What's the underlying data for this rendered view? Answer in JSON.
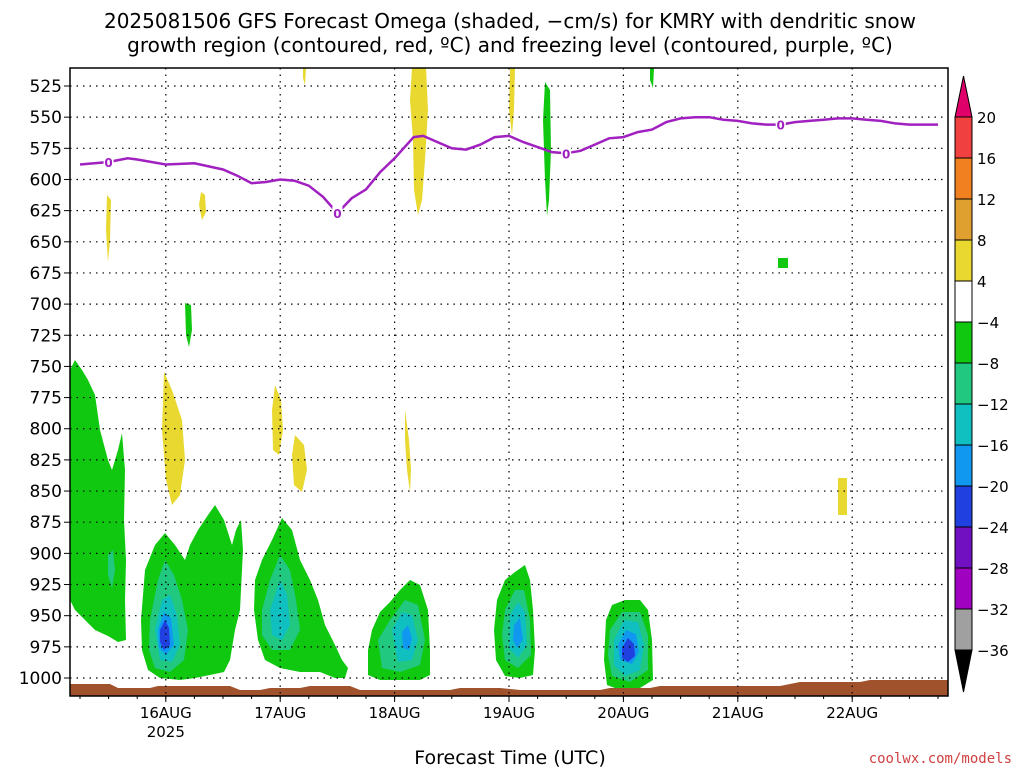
{
  "title": {
    "line1": "2025081506 GFS Forecast Omega (shaded, −cm/s) for KMRY with dendritic snow",
    "line2": "growth region (contoured, red, ºC) and freezing level (contoured, purple, ºC)"
  },
  "footer": {
    "xlabel": "Forecast Time (UTC)",
    "credit": "coolwx.com/models"
  },
  "colors": {
    "freezing_level": "#a020c0",
    "terrain": "#a0522d",
    "grid": "#000000"
  },
  "chart_data": {
    "type": "heatmap",
    "title": "2025081506 GFS Forecast Omega (shaded, −cm/s) for KMRY with dendritic snow growth region (contoured, red, ºC) and freezing level (contoured, purple, ºC)",
    "xlabel": "Forecast Time (UTC)",
    "ylabel": "",
    "y_axis": "pressure (hPa), inverted",
    "y_ticks": [
      525,
      550,
      575,
      600,
      625,
      650,
      675,
      700,
      725,
      750,
      775,
      800,
      825,
      850,
      875,
      900,
      925,
      950,
      975,
      1000
    ],
    "x_ticks": [
      {
        "label": "16AUG",
        "sublabel": "2025",
        "hours": 18
      },
      {
        "label": "17AUG",
        "sublabel": "",
        "hours": 42
      },
      {
        "label": "18AUG",
        "sublabel": "",
        "hours": 66
      },
      {
        "label": "19AUG",
        "sublabel": "",
        "hours": 90
      },
      {
        "label": "20AUG",
        "sublabel": "",
        "hours": 114
      },
      {
        "label": "21AUG",
        "sublabel": "",
        "hours": 138
      },
      {
        "label": "22AUG",
        "sublabel": "",
        "hours": 162
      }
    ],
    "x_range_hours": [
      0,
      180
    ],
    "grid": true,
    "colorbar": {
      "levels": [
        20,
        16,
        12,
        8,
        4,
        -4,
        -8,
        -12,
        -16,
        -20,
        -24,
        -28,
        -32,
        -36
      ],
      "colors": [
        "#e0006a",
        "#f04040",
        "#f08020",
        "#e0a030",
        "#e8d830",
        "#ffffff",
        "#10c810",
        "#20c880",
        "#10c0c0",
        "#1098f0",
        "#2040e0",
        "#7010c0",
        "#a000c0",
        "#a0a0a0",
        "#000000"
      ]
    },
    "freezing_level_series": {
      "name": "0",
      "hours": [
        0,
        6,
        10,
        12,
        18,
        24,
        30,
        33,
        36,
        39,
        42,
        45,
        48,
        51,
        54,
        57,
        60,
        63,
        66,
        70,
        72,
        75,
        78,
        81,
        84,
        87,
        90,
        93,
        96,
        99,
        102,
        105,
        108,
        111,
        114,
        117,
        120,
        123,
        126,
        129,
        132,
        135,
        138,
        141,
        144,
        147,
        150,
        153,
        156,
        159,
        162,
        165,
        168,
        171,
        174,
        177,
        180
      ],
      "pressure": [
        588,
        586,
        583,
        584,
        588,
        587,
        592,
        597,
        603,
        602,
        600,
        601,
        605,
        614,
        627,
        615,
        608,
        594,
        583,
        566,
        565,
        570,
        575,
        576,
        572,
        566,
        565,
        570,
        574,
        578,
        579,
        577,
        572,
        567,
        566,
        562,
        560,
        554,
        551,
        550,
        550,
        552,
        553,
        555,
        556,
        556,
        554,
        553,
        552,
        551,
        551,
        552,
        553,
        555,
        556,
        556,
        556
      ]
    },
    "omega_regions": [
      {
        "level": -4,
        "color": "#10c810",
        "desc": "low-level ascent bands centered ~16 Aug 00Z through 20 Aug 00Z, 850-1000 hPa"
      },
      {
        "level": -12,
        "color": "#10c0c0",
        "desc": "cores near 950 hPa at 16 Aug, 17 Aug, 18 Aug, 19 Aug, 20 Aug"
      },
      {
        "level": -20,
        "color": "#2040e0",
        "desc": "strongest cores near 955 hPa at 16 Aug 00Z and 20 Aug 00Z"
      },
      {
        "level": 4,
        "color": "#e8d830",
        "desc": "weak descent patches aloft and mid-levels"
      }
    ]
  }
}
